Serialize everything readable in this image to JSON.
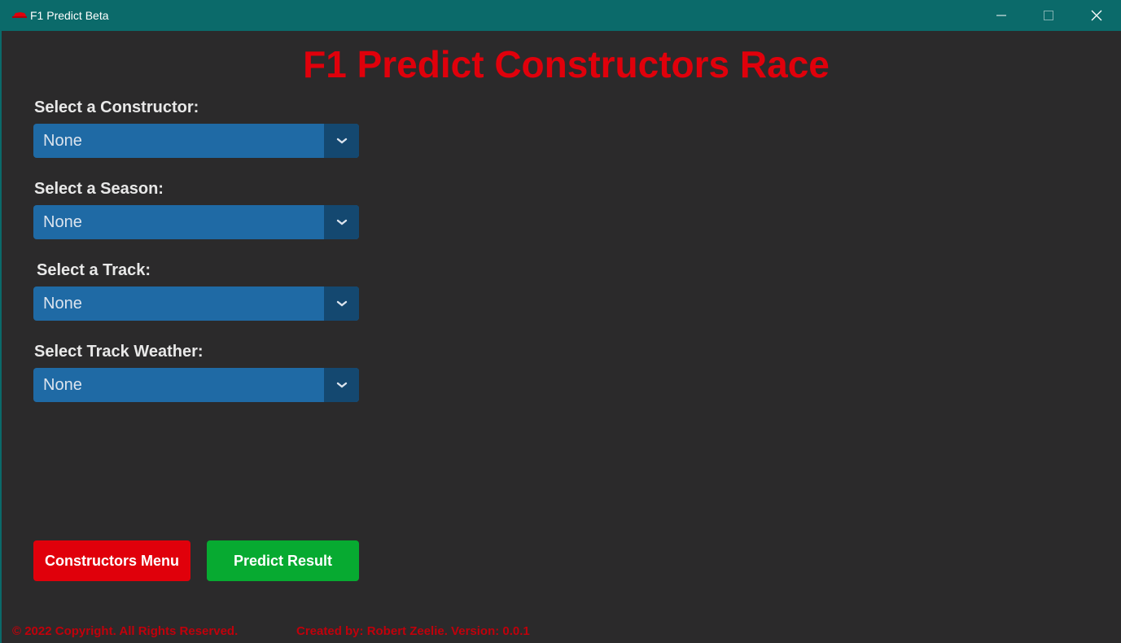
{
  "window": {
    "title": "F1 Predict Beta",
    "icon": "f1-car-icon",
    "controls": {
      "minimize": "minimize-icon",
      "maximize": "maximize-icon",
      "close": "close-icon"
    }
  },
  "header": {
    "title": "F1 Predict Constructors Race"
  },
  "form": {
    "constructor": {
      "label": "Select a Constructor:",
      "value": "None"
    },
    "season": {
      "label": "Select a Season:",
      "value": "None"
    },
    "track": {
      "label": "Select a Track:",
      "value": "None"
    },
    "weather": {
      "label": "Select Track Weather:",
      "value": "None"
    }
  },
  "buttons": {
    "menu_label": "Constructors Menu",
    "predict_label": "Predict Result"
  },
  "footer": {
    "copyright": "© 2022 Copyright. All Rights Reserved.",
    "credit": "Created by: Robert Zeelie.  Version: 0.0.1"
  },
  "colors": {
    "titlebar": "#0b6a6a",
    "background": "#2b2a2b",
    "accent_red": "#e0000b",
    "accent_green": "#07aa31",
    "select_blue": "#1f6aa5",
    "select_arrow_blue": "#144870"
  }
}
